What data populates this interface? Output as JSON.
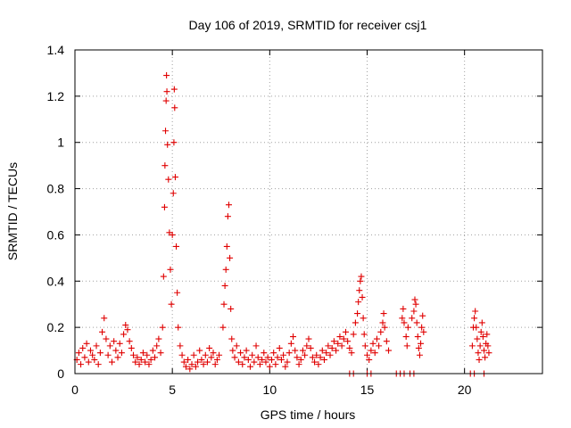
{
  "chart_data": {
    "type": "scatter",
    "title": "Day 106 of 2019, SRMTID for receiver csj1",
    "xlabel": "GPS time / hours",
    "ylabel": "SRMTID / TECUs",
    "xlim": [
      0,
      24
    ],
    "ylim": [
      0,
      1.4
    ],
    "x_ticks": [
      0,
      5,
      10,
      15,
      20
    ],
    "x_tick_labels": [
      "0",
      "5",
      "10",
      "15",
      "20"
    ],
    "y_ticks": [
      0,
      0.2,
      0.4,
      0.6,
      0.8,
      1.0,
      1.2,
      1.4
    ],
    "y_tick_labels": [
      "0",
      "0.2",
      "0.4",
      "0.6",
      "0.8",
      "1",
      "1.2",
      "1.4"
    ],
    "grid": true,
    "marker": "+",
    "marker_color": "#e00000",
    "series": [
      {
        "name": "csj1",
        "points": [
          [
            0.1,
            0.06
          ],
          [
            0.2,
            0.09
          ],
          [
            0.3,
            0.04
          ],
          [
            0.4,
            0.11
          ],
          [
            0.5,
            0.07
          ],
          [
            0.6,
            0.13
          ],
          [
            0.7,
            0.05
          ],
          [
            0.8,
            0.1
          ],
          [
            0.9,
            0.08
          ],
          [
            1.0,
            0.06
          ],
          [
            1.1,
            0.12
          ],
          [
            1.2,
            0.04
          ],
          [
            1.3,
            0.09
          ],
          [
            1.4,
            0.18
          ],
          [
            1.5,
            0.24
          ],
          [
            1.6,
            0.15
          ],
          [
            1.7,
            0.08
          ],
          [
            1.8,
            0.12
          ],
          [
            1.9,
            0.05
          ],
          [
            2.0,
            0.14
          ],
          [
            2.1,
            0.1
          ],
          [
            2.2,
            0.07
          ],
          [
            2.3,
            0.13
          ],
          [
            2.4,
            0.09
          ],
          [
            2.5,
            0.17
          ],
          [
            2.6,
            0.21
          ],
          [
            2.7,
            0.19
          ],
          [
            2.8,
            0.14
          ],
          [
            2.9,
            0.11
          ],
          [
            3.0,
            0.08
          ],
          [
            3.1,
            0.05
          ],
          [
            3.2,
            0.07
          ],
          [
            3.3,
            0.04
          ],
          [
            3.4,
            0.06
          ],
          [
            3.5,
            0.09
          ],
          [
            3.6,
            0.05
          ],
          [
            3.7,
            0.08
          ],
          [
            3.8,
            0.04
          ],
          [
            3.9,
            0.06
          ],
          [
            4.0,
            0.1
          ],
          [
            4.1,
            0.07
          ],
          [
            4.2,
            0.12
          ],
          [
            4.3,
            0.15
          ],
          [
            4.4,
            0.09
          ],
          [
            4.5,
            0.2
          ],
          [
            4.55,
            0.42
          ],
          [
            4.6,
            0.72
          ],
          [
            4.62,
            0.9
          ],
          [
            4.65,
            1.05
          ],
          [
            4.68,
            1.18
          ],
          [
            4.7,
            1.29
          ],
          [
            4.72,
            1.22
          ],
          [
            4.75,
            0.99
          ],
          [
            4.8,
            0.84
          ],
          [
            4.85,
            0.61
          ],
          [
            4.9,
            0.45
          ],
          [
            4.95,
            0.3
          ],
          [
            5.0,
            0.6
          ],
          [
            5.05,
            0.78
          ],
          [
            5.08,
            1.0
          ],
          [
            5.1,
            1.23
          ],
          [
            5.12,
            1.15
          ],
          [
            5.15,
            0.85
          ],
          [
            5.2,
            0.55
          ],
          [
            5.25,
            0.35
          ],
          [
            5.3,
            0.2
          ],
          [
            5.4,
            0.12
          ],
          [
            5.5,
            0.08
          ],
          [
            5.6,
            0.05
          ],
          [
            5.7,
            0.03
          ],
          [
            5.8,
            0.06
          ],
          [
            5.9,
            0.02
          ],
          [
            6.0,
            0.04
          ],
          [
            6.1,
            0.08
          ],
          [
            6.2,
            0.03
          ],
          [
            6.3,
            0.05
          ],
          [
            6.4,
            0.1
          ],
          [
            6.5,
            0.06
          ],
          [
            6.6,
            0.04
          ],
          [
            6.7,
            0.08
          ],
          [
            6.8,
            0.05
          ],
          [
            6.9,
            0.11
          ],
          [
            7.0,
            0.07
          ],
          [
            7.1,
            0.09
          ],
          [
            7.2,
            0.04
          ],
          [
            7.3,
            0.06
          ],
          [
            7.4,
            0.08
          ],
          [
            7.6,
            0.2
          ],
          [
            7.65,
            0.3
          ],
          [
            7.7,
            0.38
          ],
          [
            7.75,
            0.45
          ],
          [
            7.8,
            0.55
          ],
          [
            7.85,
            0.68
          ],
          [
            7.9,
            0.73
          ],
          [
            7.95,
            0.5
          ],
          [
            8.0,
            0.28
          ],
          [
            8.05,
            0.15
          ],
          [
            8.1,
            0.1
          ],
          [
            8.2,
            0.07
          ],
          [
            8.3,
            0.12
          ],
          [
            8.4,
            0.05
          ],
          [
            8.5,
            0.09
          ],
          [
            8.6,
            0.04
          ],
          [
            8.7,
            0.07
          ],
          [
            8.8,
            0.1
          ],
          [
            8.9,
            0.06
          ],
          [
            9.0,
            0.03
          ],
          [
            9.1,
            0.08
          ],
          [
            9.2,
            0.05
          ],
          [
            9.3,
            0.12
          ],
          [
            9.4,
            0.07
          ],
          [
            9.5,
            0.04
          ],
          [
            9.6,
            0.06
          ],
          [
            9.7,
            0.09
          ],
          [
            9.8,
            0.05
          ],
          [
            9.9,
            0.07
          ],
          [
            10.0,
            0.03
          ],
          [
            10.1,
            0.06
          ],
          [
            10.2,
            0.09
          ],
          [
            10.3,
            0.04
          ],
          [
            10.4,
            0.07
          ],
          [
            10.5,
            0.11
          ],
          [
            10.6,
            0.06
          ],
          [
            10.7,
            0.08
          ],
          [
            10.8,
            0.03
          ],
          [
            10.9,
            0.05
          ],
          [
            11.0,
            0.09
          ],
          [
            11.1,
            0.13
          ],
          [
            11.2,
            0.16
          ],
          [
            11.3,
            0.1
          ],
          [
            11.4,
            0.07
          ],
          [
            11.5,
            0.04
          ],
          [
            11.6,
            0.06
          ],
          [
            11.7,
            0.1
          ],
          [
            11.8,
            0.08
          ],
          [
            11.9,
            0.12
          ],
          [
            12.0,
            0.15
          ],
          [
            12.1,
            0.11
          ],
          [
            12.2,
            0.07
          ],
          [
            12.3,
            0.05
          ],
          [
            12.4,
            0.08
          ],
          [
            12.5,
            0.04
          ],
          [
            12.6,
            0.07
          ],
          [
            12.7,
            0.1
          ],
          [
            12.8,
            0.06
          ],
          [
            12.9,
            0.09
          ],
          [
            13.0,
            0.12
          ],
          [
            13.1,
            0.08
          ],
          [
            13.2,
            0.11
          ],
          [
            13.3,
            0.14
          ],
          [
            13.4,
            0.1
          ],
          [
            13.5,
            0.13
          ],
          [
            13.6,
            0.16
          ],
          [
            13.7,
            0.12
          ],
          [
            13.8,
            0.15
          ],
          [
            13.9,
            0.18
          ],
          [
            14.0,
            0.14
          ],
          [
            14.1,
            0.11
          ],
          [
            14.2,
            0.09
          ],
          [
            14.3,
            0.17
          ],
          [
            14.4,
            0.22
          ],
          [
            14.5,
            0.26
          ],
          [
            14.55,
            0.31
          ],
          [
            14.6,
            0.36
          ],
          [
            14.65,
            0.4
          ],
          [
            14.7,
            0.42
          ],
          [
            14.75,
            0.33
          ],
          [
            14.8,
            0.24
          ],
          [
            14.85,
            0.17
          ],
          [
            14.9,
            0.12
          ],
          [
            15.0,
            0.08
          ],
          [
            15.1,
            0.06
          ],
          [
            15.2,
            0.1
          ],
          [
            15.3,
            0.13
          ],
          [
            15.4,
            0.09
          ],
          [
            15.5,
            0.15
          ],
          [
            15.6,
            0.12
          ],
          [
            15.7,
            0.18
          ],
          [
            15.8,
            0.22
          ],
          [
            15.85,
            0.26
          ],
          [
            15.9,
            0.2
          ],
          [
            16.0,
            0.14
          ],
          [
            16.1,
            0.1
          ],
          [
            16.8,
            0.24
          ],
          [
            16.85,
            0.28
          ],
          [
            16.9,
            0.22
          ],
          [
            17.0,
            0.16
          ],
          [
            17.05,
            0.12
          ],
          [
            17.1,
            0.2
          ],
          [
            17.3,
            0.24
          ],
          [
            17.4,
            0.27
          ],
          [
            17.45,
            0.32
          ],
          [
            17.5,
            0.3
          ],
          [
            17.55,
            0.22
          ],
          [
            17.6,
            0.16
          ],
          [
            17.65,
            0.11
          ],
          [
            17.7,
            0.08
          ],
          [
            17.75,
            0.13
          ],
          [
            17.8,
            0.2
          ],
          [
            17.85,
            0.25
          ],
          [
            17.9,
            0.18
          ],
          [
            20.4,
            0.12
          ],
          [
            20.45,
            0.2
          ],
          [
            20.5,
            0.24
          ],
          [
            20.55,
            0.27
          ],
          [
            20.6,
            0.2
          ],
          [
            20.65,
            0.15
          ],
          [
            20.7,
            0.09
          ],
          [
            20.75,
            0.06
          ],
          [
            20.8,
            0.12
          ],
          [
            20.85,
            0.18
          ],
          [
            20.9,
            0.22
          ],
          [
            20.95,
            0.16
          ],
          [
            21.0,
            0.1
          ],
          [
            21.05,
            0.07
          ],
          [
            21.1,
            0.13
          ],
          [
            21.15,
            0.17
          ],
          [
            21.2,
            0.12
          ],
          [
            21.25,
            0.09
          ],
          [
            14.1,
            0.0
          ],
          [
            14.3,
            0.0
          ],
          [
            15.0,
            0.0
          ],
          [
            15.2,
            0.0
          ],
          [
            16.5,
            0.0
          ],
          [
            16.7,
            0.0
          ],
          [
            16.9,
            0.0
          ],
          [
            17.2,
            0.0
          ],
          [
            17.4,
            0.0
          ],
          [
            20.3,
            0.0
          ],
          [
            20.5,
            0.0
          ],
          [
            21.0,
            0.0
          ]
        ]
      }
    ]
  }
}
